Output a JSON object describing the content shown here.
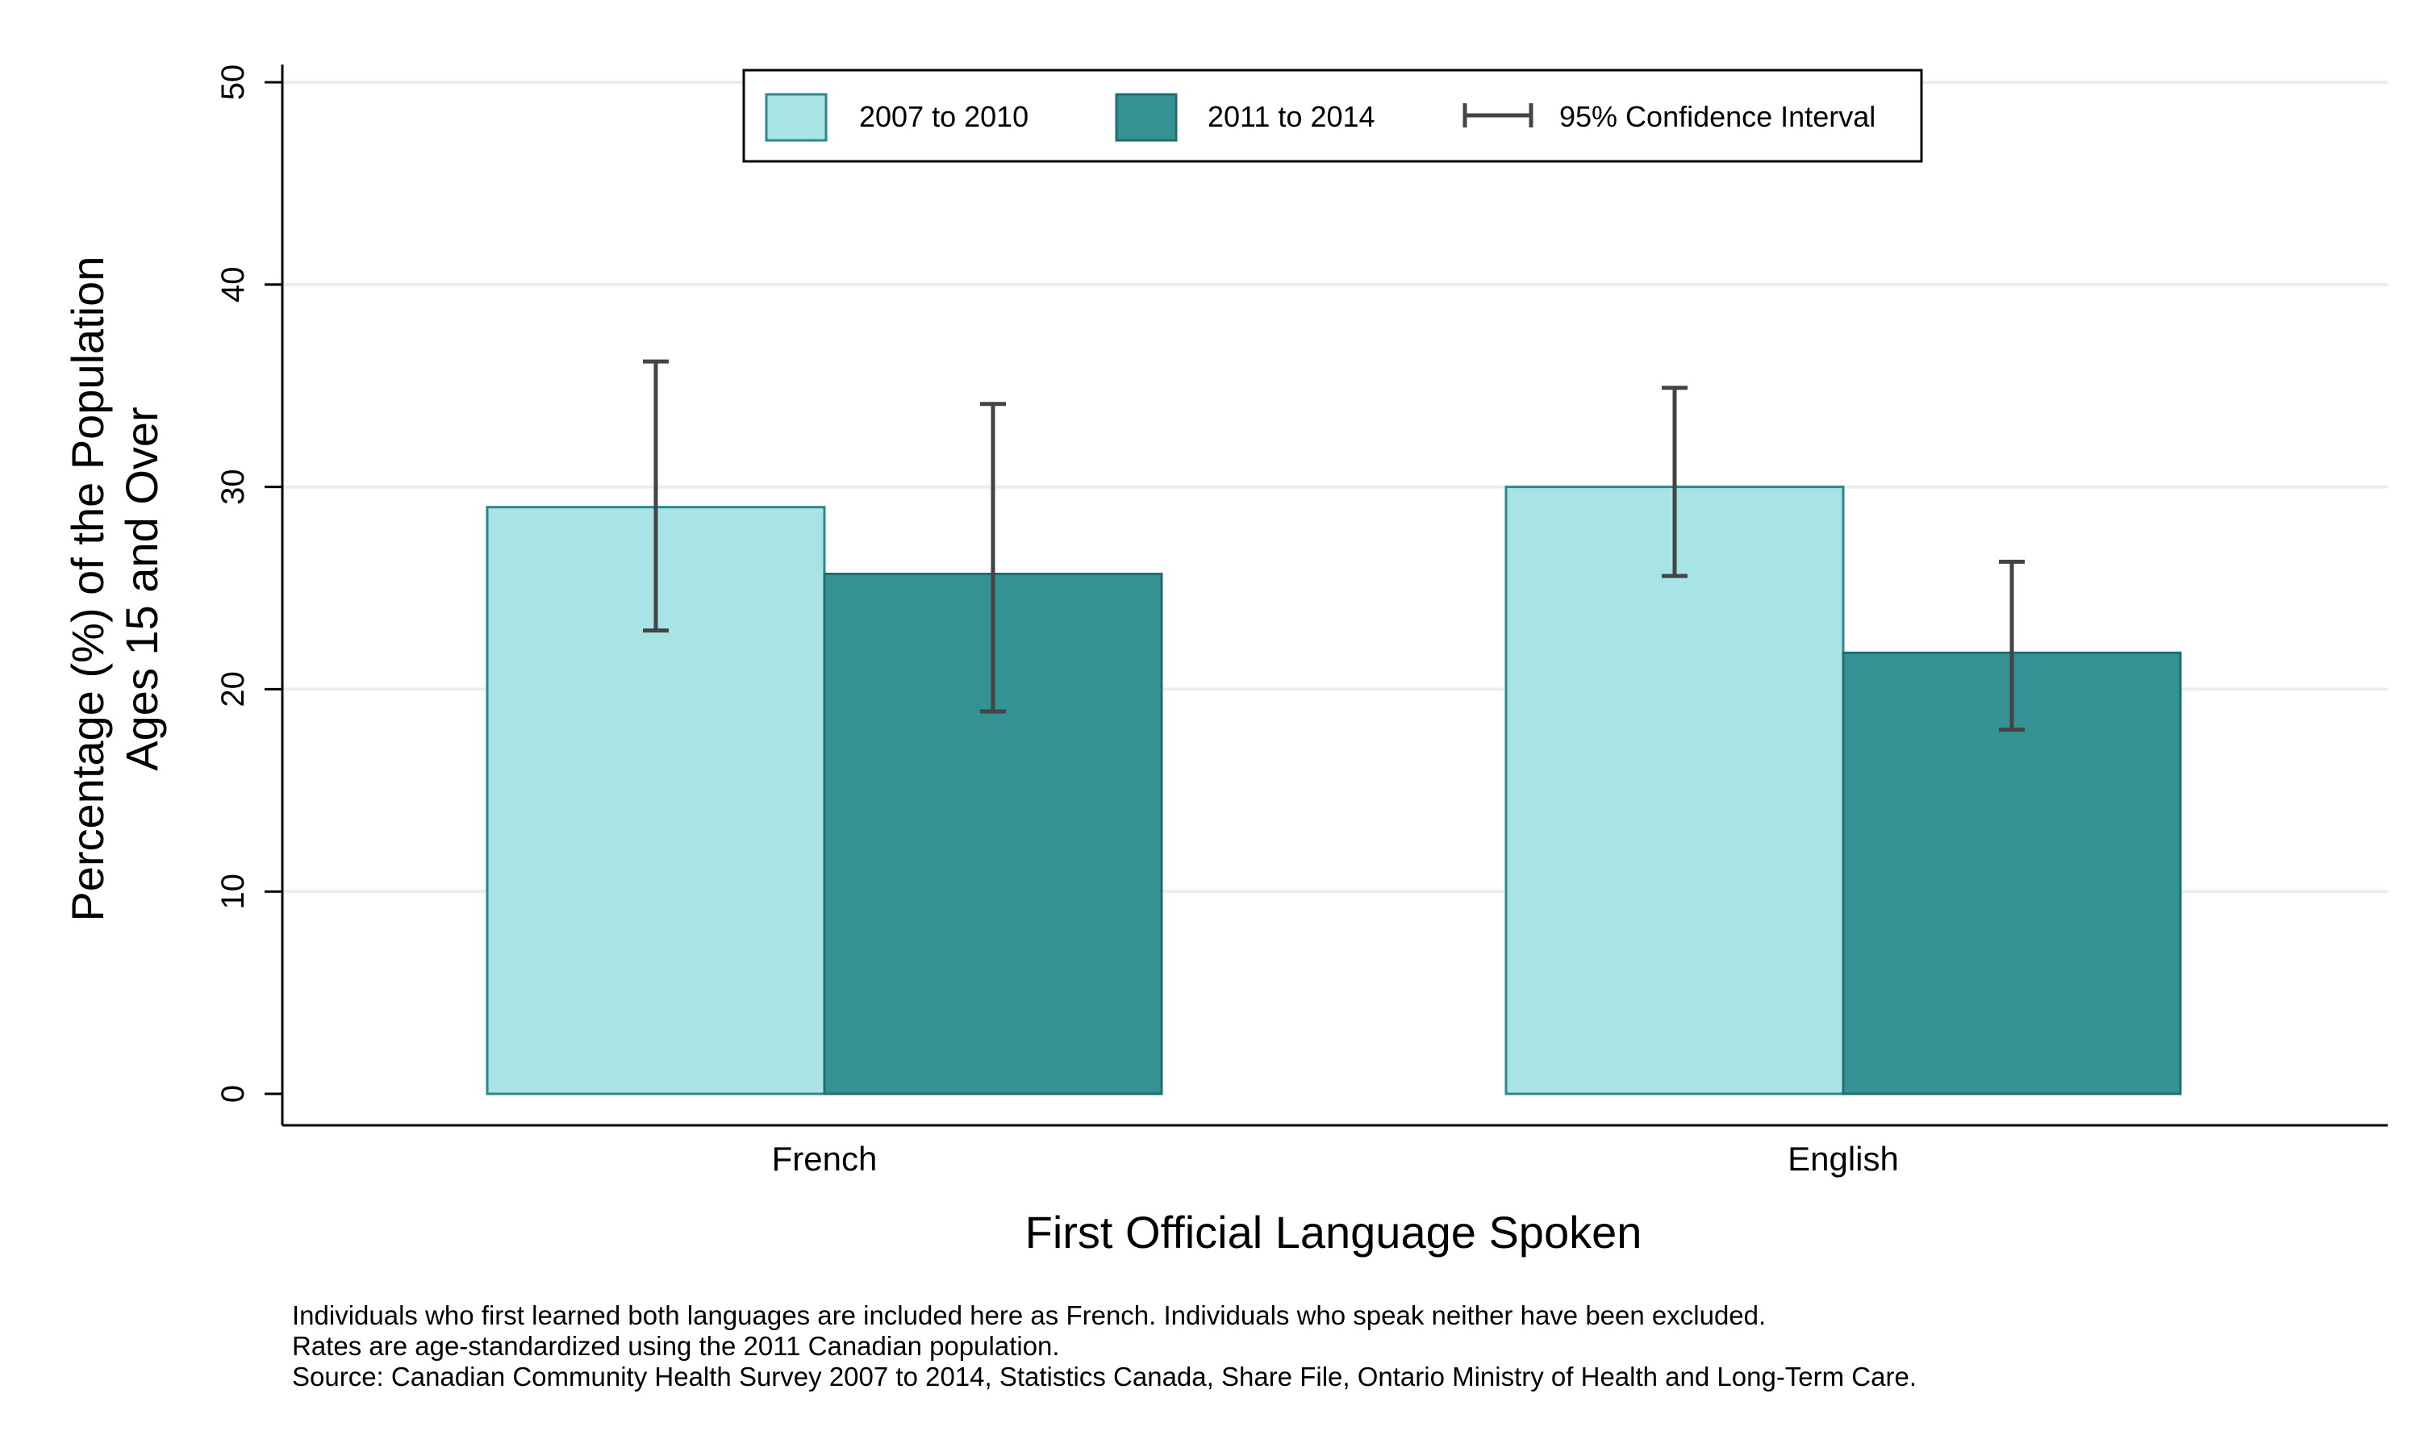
{
  "chart_data": {
    "type": "bar",
    "categories": [
      "French",
      "English"
    ],
    "series": [
      {
        "name": "2007 to 2010",
        "color": "#a8e4e6",
        "edge": "#2b878a",
        "values": [
          29.0,
          30.0
        ],
        "ci_low": [
          22.9,
          25.6
        ],
        "ci_high": [
          36.2,
          34.9
        ]
      },
      {
        "name": "2011 to 2014",
        "color": "#349194",
        "edge": "#1f6f72",
        "values": [
          25.7,
          21.8
        ],
        "ci_low": [
          18.9,
          18.0
        ],
        "ci_high": [
          34.1,
          26.3
        ]
      }
    ],
    "ci_legend": "95% Confidence Interval",
    "xlabel": "First Official Language Spoken",
    "ylabel_lines": [
      "Percentage (%) of the Population",
      "Ages 15 and Over"
    ],
    "ylim": [
      0,
      50
    ],
    "yticks": [
      0,
      10,
      20,
      30,
      40,
      50
    ],
    "grid": true,
    "legend_position": "top"
  },
  "notes": [
    "Individuals who first learned both languages are included here as French.  Individuals who speak neither have been excluded.",
    "Rates are age-standardized using the 2011 Canadian population.",
    "Source: Canadian Community Health Survey 2007 to 2014, Statistics Canada, Share File, Ontario Ministry of Health and Long-Term Care."
  ]
}
